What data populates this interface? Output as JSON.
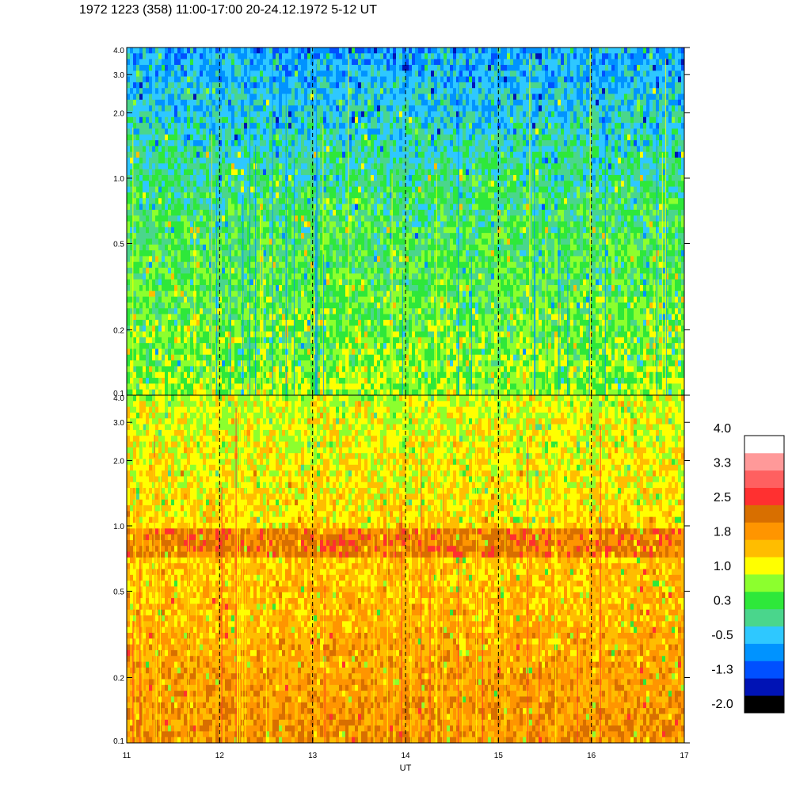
{
  "title": "1972 1223 (358) 11:00-17:00 20-24.12.1972  5-12 UT",
  "colors": {
    "background": "#ffffff",
    "frame": "#000000",
    "levels": [
      "#000000",
      "#0013b5",
      "#0050ff",
      "#0093ff",
      "#2ec8ff",
      "#4ad68c",
      "#2ee83a",
      "#8cff2e",
      "#ffff00",
      "#ffbd00",
      "#ff9500",
      "#d86f00",
      "#ff3030",
      "#ff6060",
      "#ff9999",
      "#ffffff"
    ]
  },
  "chart_data": [
    {
      "type": "heatmap",
      "panel": "upper",
      "title": "",
      "xlabel": "",
      "ylabel": "",
      "x_ticks": [
        11,
        12,
        13,
        14,
        15,
        16,
        17
      ],
      "x_tick_labels": [],
      "xlim": [
        11,
        17
      ],
      "y_scale": "log",
      "ylim": [
        0.1,
        4.0
      ],
      "y_ticks": [
        0.1,
        0.2,
        0.5,
        1.0,
        2.0,
        3.0,
        4.0
      ],
      "y_tick_labels": [
        "0.1",
        "0.2",
        "0.5",
        "1.0",
        "2.0",
        "3.0",
        "4.0"
      ],
      "grid_x_dashed_at": [
        12,
        13,
        14,
        15,
        16
      ],
      "dominant_levels_low_to_high_freq": [
        "#8cff2e",
        "#2ee83a",
        "#4ad68c",
        "#2ec8ff",
        "#0093ff",
        "#0050ff"
      ]
    },
    {
      "type": "heatmap",
      "panel": "lower",
      "title": "",
      "xlabel": "UT",
      "ylabel": "",
      "x_ticks": [
        11,
        12,
        13,
        14,
        15,
        16,
        17
      ],
      "x_tick_labels": [
        "11",
        "12",
        "13",
        "14",
        "15",
        "16",
        "17"
      ],
      "xlim": [
        11,
        17
      ],
      "y_scale": "log",
      "ylim": [
        0.1,
        4.0
      ],
      "y_ticks": [
        0.1,
        0.2,
        0.5,
        1.0,
        2.0,
        3.0,
        4.0
      ],
      "y_tick_labels": [
        "0.1",
        "0.2",
        "0.5",
        "1.0",
        "2.0",
        "3.0",
        "4.0"
      ],
      "grid_x_dashed_at": [
        12,
        13,
        14,
        15,
        16
      ],
      "band_center": 0.85,
      "dominant_levels_low_to_high_freq": [
        "#d86f00",
        "#ff9500",
        "#ffbd00",
        "#ffff00",
        "#8cff2e"
      ]
    }
  ],
  "colorbar": {
    "levels": 16,
    "labels": [
      "4.0",
      "3.3",
      "2.5",
      "1.8",
      "1.0",
      "0.3",
      "-0.5",
      "-1.3",
      "-2.0"
    ]
  }
}
